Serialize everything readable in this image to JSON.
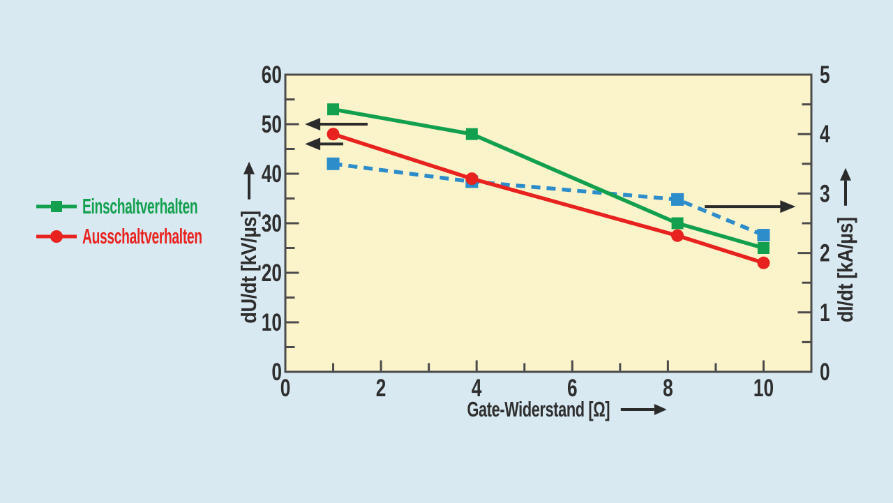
{
  "chart_data": {
    "type": "line",
    "grid": false,
    "x_axis": {
      "label": "Gate-Widerstand [Ω]",
      "min": 0,
      "max": 11,
      "major_ticks": [
        0,
        2,
        4,
        6,
        8,
        10
      ],
      "minor_ticks": [
        1,
        3,
        5,
        7,
        9
      ]
    },
    "y_axis_left": {
      "label": "dU/dt [kV/µs]",
      "min": 0,
      "max": 60,
      "major_ticks": [
        0,
        10,
        20,
        30,
        40,
        50,
        60
      ],
      "minor_step": 5
    },
    "y_axis_right": {
      "label": "dI/dt [kA/µs]",
      "min": 0,
      "max": 5,
      "major_ticks": [
        0,
        1,
        2,
        3,
        4,
        5
      ],
      "minor_step": 0.5
    },
    "x": [
      1,
      3.9,
      8.2,
      10
    ],
    "series": [
      {
        "name": "Einschaltverhalten",
        "axis": "left",
        "color": "#13a04e",
        "marker": "square",
        "marker_size": 17,
        "line_style": "solid",
        "values": [
          53,
          48,
          30,
          25
        ],
        "in_legend": true
      },
      {
        "name": "Ausschaltverhalten",
        "axis": "left",
        "color": "#e8221e",
        "marker": "circle",
        "marker_size": 18,
        "line_style": "solid",
        "values": [
          48,
          39,
          27.5,
          22
        ],
        "in_legend": true
      },
      {
        "name": "dI/dt",
        "axis": "right",
        "color": "#2d8cca",
        "marker": "square",
        "marker_size": 18,
        "line_style": "dashed",
        "values": [
          3.5,
          3.2,
          2.9,
          2.3
        ],
        "in_legend": false
      }
    ],
    "annotations": [
      {
        "type": "arrow",
        "direction": "left",
        "axis": "left",
        "y": 50,
        "x_from": 1.72,
        "x_to": 0.41
      },
      {
        "type": "arrow",
        "direction": "left",
        "axis": "left",
        "y": 46,
        "x_from": 1.21,
        "x_to": 0.41
      },
      {
        "type": "arrow",
        "direction": "right",
        "axis": "right",
        "y": 2.78,
        "x_from": 8.77,
        "x_to": 10.67
      }
    ],
    "legend": {
      "position": "left-middle",
      "entries": [
        "Einschaltverhalten",
        "Ausschaltverhalten"
      ]
    },
    "colors": {
      "background": "#d8e9f2",
      "plot_background": "#fbf3ca",
      "axis": "#4b4b4b",
      "text": "#2e2e2e",
      "arrow": "#2b2b2b"
    }
  }
}
